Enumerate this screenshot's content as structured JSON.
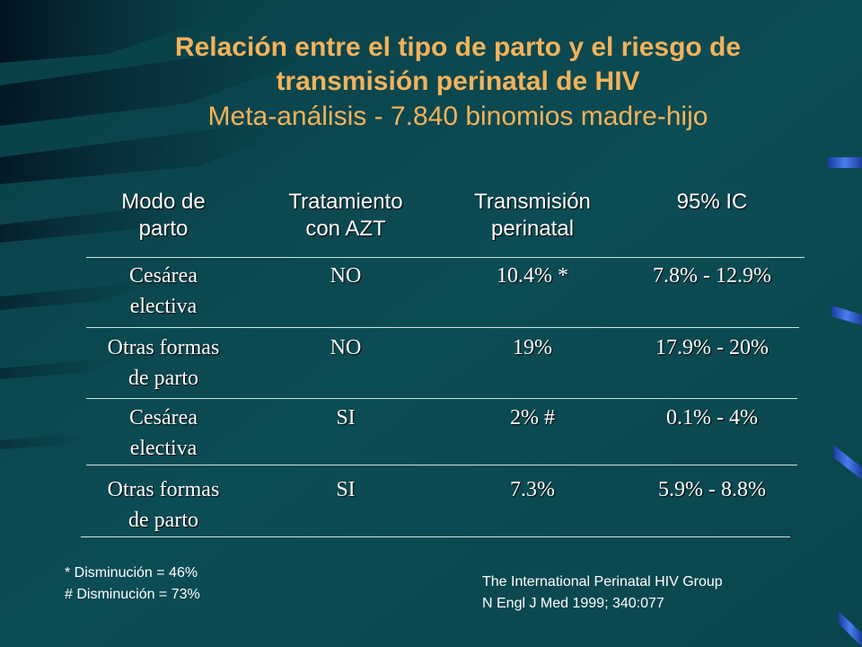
{
  "slide": {
    "title_line1": "Relación entre el tipo de parto y el riesgo de",
    "title_line2": "transmisión perinatal de HIV",
    "subtitle": "Meta-análisis - 7.840 binomios madre-hijo"
  },
  "table": {
    "headers": [
      [
        "Modo de",
        "parto"
      ],
      [
        "Tratamiento",
        "con AZT"
      ],
      [
        "Transmisión",
        "perinatal"
      ],
      [
        "95% IC"
      ]
    ],
    "rows": [
      {
        "mode": [
          "Cesárea",
          "electiva"
        ],
        "azt": "NO",
        "transmission": "10.4% *",
        "ci": "7.8% - 12.9%"
      },
      {
        "mode": [
          "Otras formas",
          "de parto"
        ],
        "azt": "NO",
        "transmission": "19%",
        "ci": "17.9% - 20%"
      },
      {
        "mode": [
          "Cesárea",
          "electiva"
        ],
        "azt": "SI",
        "transmission": "2% #",
        "ci": "0.1% - 4%"
      },
      {
        "mode": [
          "Otras formas",
          "de parto"
        ],
        "azt": "SI",
        "transmission": "7.3%",
        "ci": "5.9% - 8.8%"
      }
    ]
  },
  "footnotes": {
    "star": "* Disminución = 46%",
    "hash": "# Disminución = 73%"
  },
  "citation": {
    "line1": "The International Perinatal HIV Group",
    "line2": "N Engl J Med 1999; 340:077"
  },
  "colors": {
    "background": "#0b4a52",
    "title": "#f3b25a",
    "text": "#ffffff",
    "accent_blue": "#2f62d8"
  }
}
